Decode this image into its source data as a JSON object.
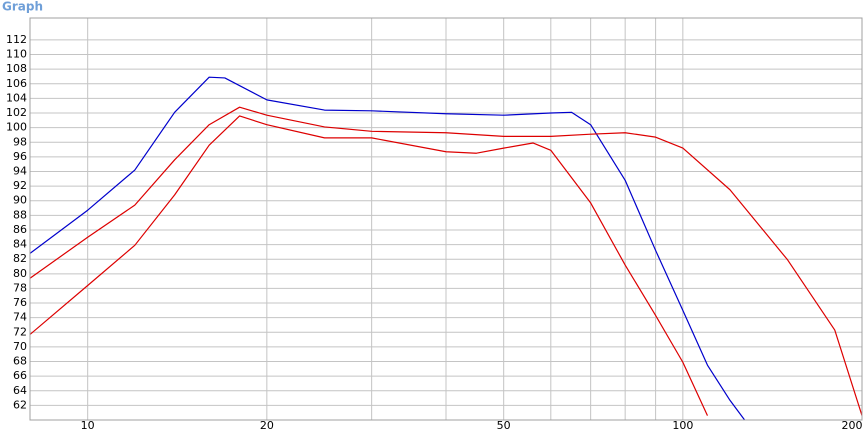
{
  "chart_data": {
    "type": "line",
    "title": "Graph",
    "log_x": true,
    "grid": true,
    "xlim": [
      8,
      200
    ],
    "ylim": [
      60,
      115
    ],
    "xticks": [
      10,
      20,
      50,
      100,
      200
    ],
    "x_minor_grid": [
      30,
      40,
      60,
      70,
      80,
      90
    ],
    "yticks": [
      62,
      64,
      66,
      68,
      70,
      72,
      74,
      76,
      78,
      80,
      82,
      84,
      86,
      88,
      90,
      92,
      94,
      96,
      98,
      100,
      102,
      104,
      106,
      108,
      110,
      112
    ],
    "series": [
      {
        "color": "#0000cc",
        "x": [
          8,
          10,
          12,
          14,
          16,
          17,
          20,
          25,
          30,
          40,
          50,
          60,
          65,
          70,
          80,
          90,
          100,
          110,
          120,
          127
        ],
        "values": [
          82.8,
          88.7,
          94.2,
          102.1,
          106.9,
          106.8,
          103.8,
          102.4,
          102.3,
          101.9,
          101.7,
          102.0,
          102.1,
          100.4,
          92.8,
          83.2,
          75.0,
          67.5,
          62.7,
          60
        ]
      },
      {
        "color": "#dd0000",
        "x": [
          8,
          10,
          12,
          14,
          16,
          18,
          20,
          25,
          30,
          40,
          50,
          60,
          70,
          80,
          90,
          100,
          120,
          150,
          180,
          200
        ],
        "values": [
          79.4,
          85.0,
          89.4,
          95.6,
          100.4,
          102.8,
          101.7,
          100.1,
          99.5,
          99.3,
          98.8,
          98.8,
          99.1,
          99.3,
          98.7,
          97.2,
          91.5,
          81.9,
          72.3,
          60.6
        ]
      },
      {
        "color": "#dd0000",
        "x": [
          8,
          10,
          12,
          14,
          16,
          18,
          20,
          25,
          30,
          40,
          45,
          50,
          56,
          60,
          70,
          80,
          90,
          100,
          110
        ],
        "values": [
          71.7,
          78.4,
          83.9,
          90.8,
          97.6,
          101.6,
          100.4,
          98.6,
          98.6,
          96.7,
          96.5,
          97.2,
          97.9,
          96.9,
          89.7,
          81.2,
          74.3,
          67.9,
          60.6
        ]
      }
    ]
  }
}
